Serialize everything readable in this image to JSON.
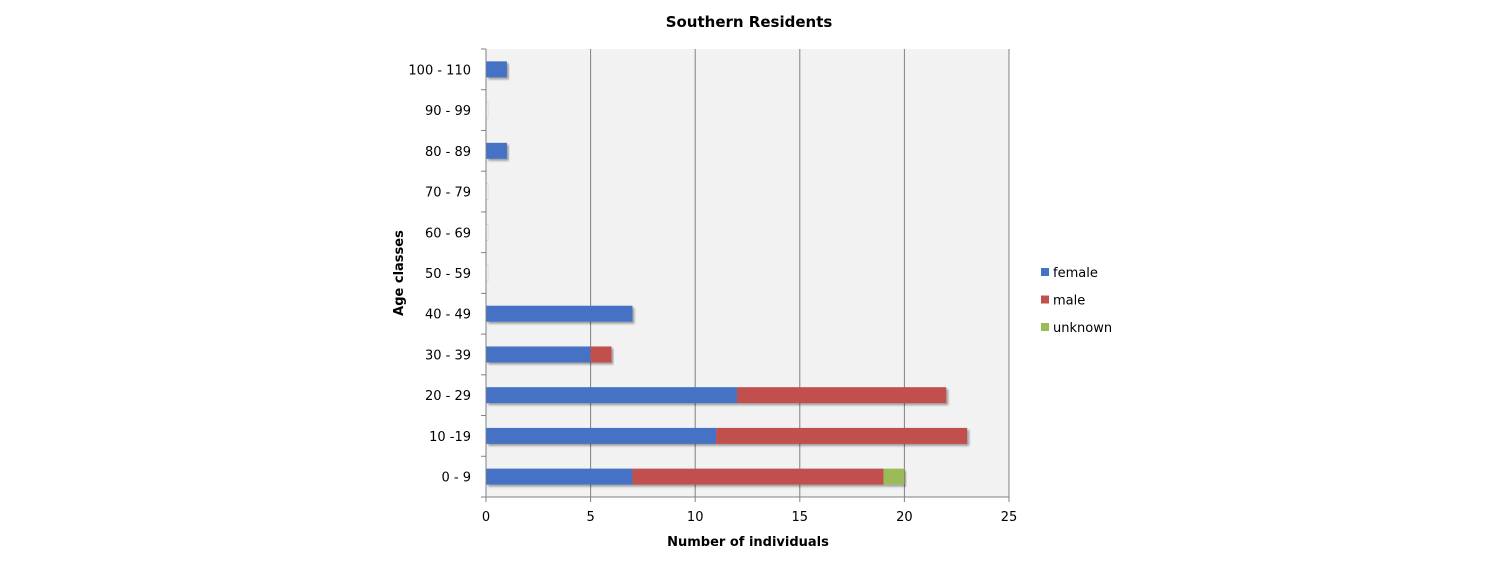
{
  "chart_data": {
    "type": "bar",
    "orientation": "horizontal",
    "stacked": true,
    "title": "Southern Residents",
    "xlabel": "Number of individuals",
    "ylabel": "Age classes",
    "xlim": [
      0,
      25
    ],
    "x_ticks": [
      0,
      5,
      10,
      15,
      20,
      25
    ],
    "grid": true,
    "legend_position": "right",
    "categories": [
      "0 - 9",
      "10 -19",
      "20 - 29",
      "30 - 39",
      "40 - 49",
      "50 - 59",
      "60 - 69",
      "70 - 79",
      "80 - 89",
      "90 - 99",
      "100 - 110"
    ],
    "series": [
      {
        "name": "female",
        "color": "#4472c4",
        "values": [
          7,
          11,
          12,
          5,
          7,
          0,
          0,
          0,
          1,
          0,
          1
        ]
      },
      {
        "name": "male",
        "color": "#c0504d",
        "values": [
          12,
          12,
          10,
          1,
          0,
          0,
          0,
          0,
          0,
          0,
          0
        ]
      },
      {
        "name": "unknown",
        "color": "#9bbb59",
        "values": [
          1,
          0,
          0,
          0,
          0,
          0,
          0,
          0,
          0,
          0,
          0
        ]
      }
    ],
    "plot_background": "#f2f2f2",
    "gridline_color": "#808080"
  }
}
